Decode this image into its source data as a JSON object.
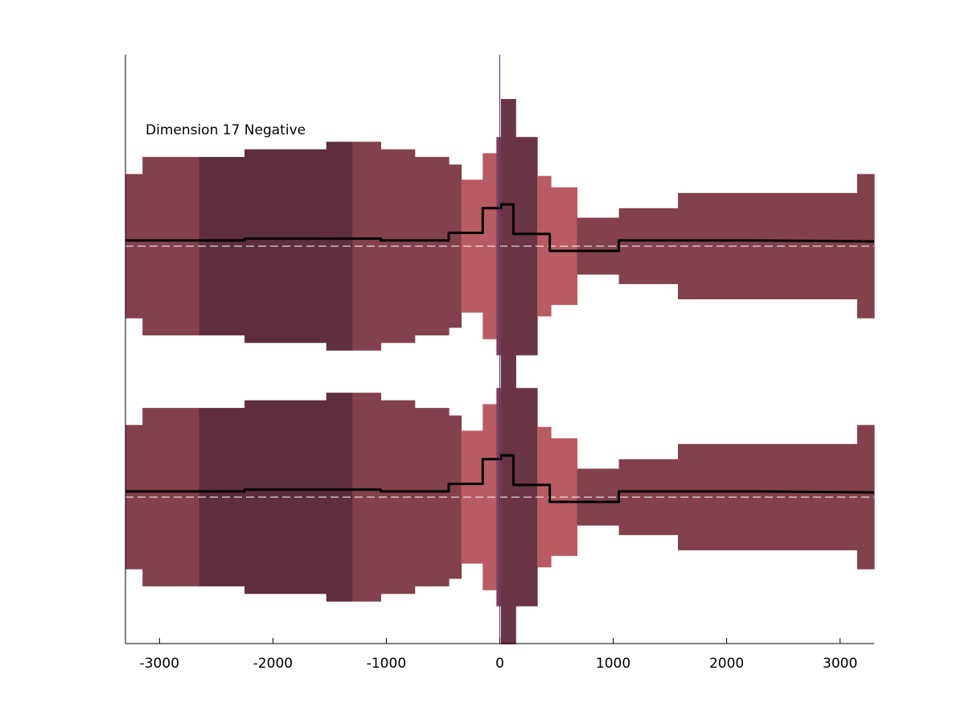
{
  "chart_data": {
    "type": "area",
    "annotation": "Dimension 17 Negative",
    "xlim": [
      -3300,
      3300
    ],
    "xticks": [
      -3000,
      -2000,
      -1000,
      0,
      1000,
      2000,
      3000
    ],
    "xtick_labels": [
      "-3000",
      "-2000",
      "-1000",
      "0",
      "1000",
      "2000",
      "3000"
    ],
    "vertical_line_x": 0,
    "colors": {
      "light": "#b85b62",
      "medium": "#82414d",
      "dark": "#5e2d3e",
      "darkest": "#6a3444",
      "line": "#000000",
      "baseline": "#ffffff",
      "vline": "#3a2fb0"
    },
    "bands": [
      {
        "x0": -3300,
        "x1": -3150,
        "half": 0.76,
        "shade": "medium"
      },
      {
        "x0": -3150,
        "x1": -2650,
        "half": 0.94,
        "shade": "medium"
      },
      {
        "x0": -2650,
        "x1": -2250,
        "half": 0.94,
        "shade": "dark"
      },
      {
        "x0": -2250,
        "x1": -1530,
        "half": 1.02,
        "shade": "dark"
      },
      {
        "x0": -1530,
        "x1": -1300,
        "half": 1.1,
        "shade": "dark"
      },
      {
        "x0": -1300,
        "x1": -1050,
        "half": 1.1,
        "shade": "medium"
      },
      {
        "x0": -1050,
        "x1": -750,
        "half": 1.02,
        "shade": "medium"
      },
      {
        "x0": -750,
        "x1": -450,
        "half": 0.94,
        "shade": "medium"
      },
      {
        "x0": -450,
        "x1": -340,
        "half": 0.86,
        "shade": "medium"
      },
      {
        "x0": -340,
        "x1": -150,
        "half": 0.7,
        "shade": "light"
      },
      {
        "x0": -150,
        "x1": -30,
        "half": 0.98,
        "shade": "light"
      },
      {
        "x0": -30,
        "x1": 10,
        "half": 1.15,
        "shade": "medium"
      },
      {
        "x0": 10,
        "x1": 140,
        "half": 1.55,
        "shade": "darkest"
      },
      {
        "x0": 140,
        "x1": 330,
        "half": 1.15,
        "shade": "darkest"
      },
      {
        "x0": 330,
        "x1": 450,
        "half": 0.74,
        "shade": "light"
      },
      {
        "x0": 450,
        "x1": 680,
        "half": 0.62,
        "shade": "light"
      },
      {
        "x0": 680,
        "x1": 1050,
        "half": 0.3,
        "shade": "medium"
      },
      {
        "x0": 1050,
        "x1": 1330,
        "half": 0.4,
        "shade": "medium"
      },
      {
        "x0": 1330,
        "x1": 1570,
        "half": 0.4,
        "shade": "medium"
      },
      {
        "x0": 1570,
        "x1": 3150,
        "half": 0.56,
        "shade": "medium"
      },
      {
        "x0": 3150,
        "x1": 3300,
        "half": 0.76,
        "shade": "medium"
      }
    ],
    "series": [
      {
        "x": [
          -3300,
          -2250,
          -2250,
          -1050,
          -1050,
          -450,
          -450,
          -150,
          -150,
          10,
          10,
          120,
          120,
          440,
          440,
          1050,
          1050,
          2250,
          3300
        ],
        "y": [
          0.06,
          0.06,
          0.08,
          0.08,
          0.06,
          0.06,
          0.14,
          0.14,
          0.4,
          0.4,
          0.44,
          0.44,
          0.13,
          0.13,
          -0.05,
          -0.05,
          0.06,
          0.06,
          0.05
        ]
      }
    ],
    "panels": 2,
    "ylim": [
      -1.9,
      2.1
    ]
  }
}
